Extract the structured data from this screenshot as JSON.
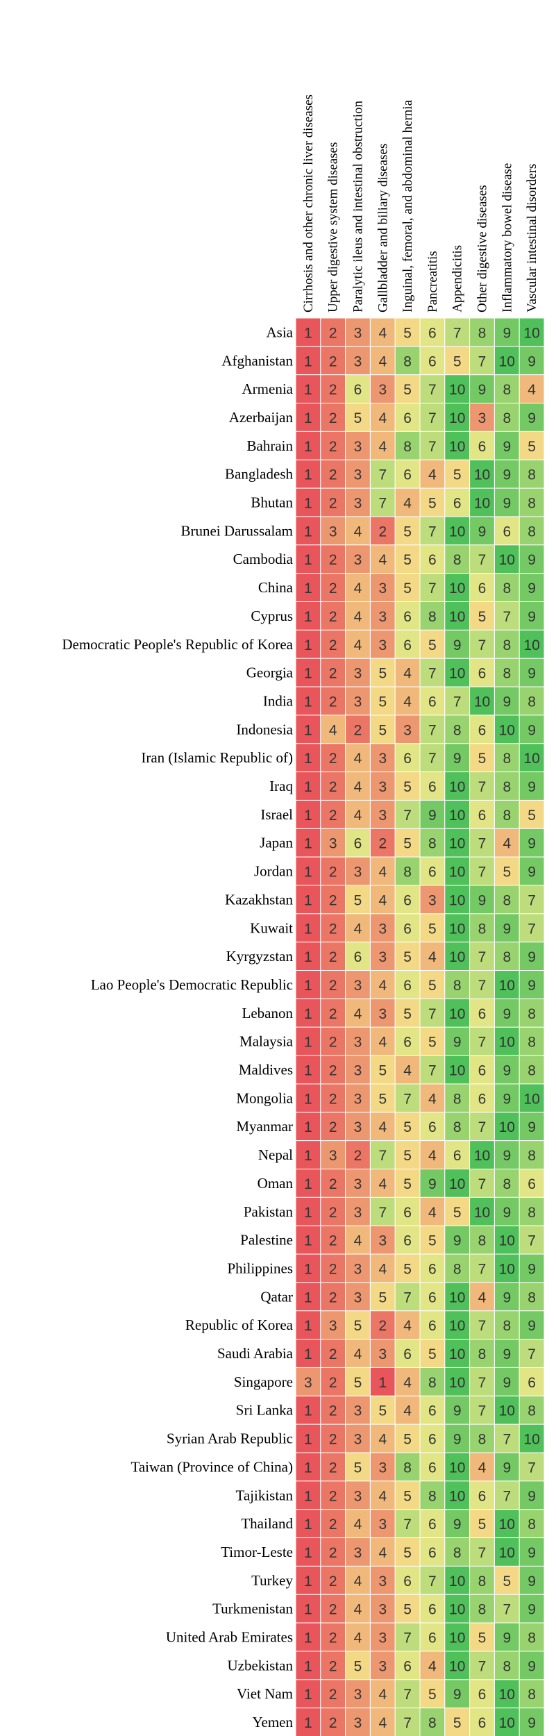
{
  "chart_data": {
    "type": "heatmap",
    "columns": [
      "Cirrhosis and other chronic liver diseases",
      "Upper digestive system diseases",
      "Paralytic ileus and intestinal obstruction",
      "Gallbladder and biliary diseases",
      "Inguinal, femoral, and abdominal hernia",
      "Pancreatitis",
      "Appendicitis",
      "Other digestive diseases",
      "Inflammatory bowel disease",
      "Vascular intestinal disorders"
    ],
    "rows": [
      "Asia",
      "Afghanistan",
      "Armenia",
      "Azerbaijan",
      "Bahrain",
      "Bangladesh",
      "Bhutan",
      "Brunei Darussalam",
      "Cambodia",
      "China",
      "Cyprus",
      "Democratic People's Republic of Korea",
      "Georgia",
      "India",
      "Indonesia",
      "Iran (Islamic Republic of)",
      "Iraq",
      "Israel",
      "Japan",
      "Jordan",
      "Kazakhstan",
      "Kuwait",
      "Kyrgyzstan",
      "Lao People's Democratic Republic",
      "Lebanon",
      "Malaysia",
      "Maldives",
      "Mongolia",
      "Myanmar",
      "Nepal",
      "Oman",
      "Pakistan",
      "Palestine",
      "Philippines",
      "Qatar",
      "Republic of Korea",
      "Saudi Arabia",
      "Singapore",
      "Sri Lanka",
      "Syrian Arab Republic",
      "Taiwan (Province of China)",
      "Tajikistan",
      "Thailand",
      "Timor-Leste",
      "Turkey",
      "Turkmenistan",
      "United Arab Emirates",
      "Uzbekistan",
      "Viet Nam",
      "Yemen"
    ],
    "values": [
      [
        1,
        2,
        3,
        4,
        5,
        6,
        7,
        8,
        9,
        10
      ],
      [
        1,
        2,
        3,
        4,
        8,
        6,
        5,
        7,
        10,
        9
      ],
      [
        1,
        2,
        6,
        3,
        5,
        7,
        10,
        9,
        8,
        4
      ],
      [
        1,
        2,
        5,
        4,
        6,
        7,
        10,
        3,
        8,
        9
      ],
      [
        1,
        2,
        3,
        4,
        8,
        7,
        10,
        6,
        9,
        5
      ],
      [
        1,
        2,
        3,
        7,
        6,
        4,
        5,
        10,
        9,
        8
      ],
      [
        1,
        2,
        3,
        7,
        4,
        5,
        6,
        10,
        9,
        8
      ],
      [
        1,
        3,
        4,
        2,
        5,
        7,
        10,
        9,
        6,
        8
      ],
      [
        1,
        2,
        3,
        4,
        5,
        6,
        8,
        7,
        10,
        9
      ],
      [
        1,
        2,
        4,
        3,
        5,
        7,
        10,
        6,
        8,
        9
      ],
      [
        1,
        2,
        4,
        3,
        6,
        8,
        10,
        5,
        7,
        9
      ],
      [
        1,
        2,
        4,
        3,
        6,
        5,
        9,
        7,
        8,
        10
      ],
      [
        1,
        2,
        3,
        5,
        4,
        7,
        10,
        6,
        8,
        9
      ],
      [
        1,
        2,
        3,
        5,
        4,
        6,
        7,
        10,
        9,
        8
      ],
      [
        1,
        4,
        2,
        5,
        3,
        7,
        8,
        6,
        10,
        9
      ],
      [
        1,
        2,
        4,
        3,
        6,
        7,
        9,
        5,
        8,
        10
      ],
      [
        1,
        2,
        4,
        3,
        5,
        6,
        10,
        7,
        8,
        9
      ],
      [
        1,
        2,
        4,
        3,
        7,
        9,
        10,
        6,
        8,
        5
      ],
      [
        1,
        3,
        6,
        2,
        5,
        8,
        10,
        7,
        4,
        9
      ],
      [
        1,
        2,
        3,
        4,
        8,
        6,
        10,
        7,
        5,
        9
      ],
      [
        1,
        2,
        5,
        4,
        6,
        3,
        10,
        9,
        8,
        7
      ],
      [
        1,
        2,
        4,
        3,
        6,
        5,
        10,
        8,
        9,
        7
      ],
      [
        1,
        2,
        6,
        3,
        5,
        4,
        10,
        7,
        8,
        9
      ],
      [
        1,
        2,
        3,
        4,
        6,
        5,
        8,
        7,
        10,
        9
      ],
      [
        1,
        2,
        4,
        3,
        5,
        7,
        10,
        6,
        9,
        8
      ],
      [
        1,
        2,
        3,
        4,
        6,
        5,
        9,
        7,
        10,
        8
      ],
      [
        1,
        2,
        3,
        5,
        4,
        7,
        10,
        6,
        9,
        8
      ],
      [
        1,
        2,
        3,
        5,
        7,
        4,
        8,
        6,
        9,
        10
      ],
      [
        1,
        2,
        3,
        4,
        5,
        6,
        8,
        7,
        10,
        9
      ],
      [
        1,
        3,
        2,
        7,
        5,
        4,
        6,
        10,
        9,
        8
      ],
      [
        1,
        2,
        3,
        4,
        5,
        9,
        10,
        7,
        8,
        6
      ],
      [
        1,
        2,
        3,
        7,
        6,
        4,
        5,
        10,
        9,
        8
      ],
      [
        1,
        2,
        4,
        3,
        6,
        5,
        9,
        8,
        10,
        7
      ],
      [
        1,
        2,
        3,
        4,
        5,
        6,
        8,
        7,
        10,
        9
      ],
      [
        1,
        2,
        3,
        5,
        7,
        6,
        10,
        4,
        9,
        8
      ],
      [
        1,
        3,
        5,
        2,
        4,
        6,
        10,
        7,
        8,
        9
      ],
      [
        1,
        2,
        4,
        3,
        6,
        5,
        10,
        8,
        9,
        7
      ],
      [
        3,
        2,
        5,
        1,
        4,
        8,
        10,
        7,
        9,
        6
      ],
      [
        1,
        2,
        3,
        5,
        4,
        6,
        9,
        7,
        10,
        8
      ],
      [
        1,
        2,
        3,
        4,
        5,
        6,
        9,
        8,
        7,
        10
      ],
      [
        1,
        2,
        5,
        3,
        8,
        6,
        10,
        4,
        9,
        7
      ],
      [
        1,
        2,
        3,
        4,
        5,
        8,
        10,
        6,
        7,
        9
      ],
      [
        1,
        2,
        4,
        3,
        7,
        6,
        9,
        5,
        10,
        8
      ],
      [
        1,
        2,
        3,
        4,
        5,
        6,
        8,
        7,
        10,
        9
      ],
      [
        1,
        2,
        4,
        3,
        6,
        7,
        10,
        8,
        5,
        9
      ],
      [
        1,
        2,
        4,
        3,
        5,
        6,
        10,
        8,
        7,
        9
      ],
      [
        1,
        2,
        4,
        3,
        7,
        6,
        10,
        5,
        9,
        8
      ],
      [
        1,
        2,
        5,
        3,
        6,
        4,
        10,
        7,
        8,
        9
      ],
      [
        1,
        2,
        3,
        4,
        7,
        5,
        9,
        6,
        10,
        8
      ],
      [
        1,
        2,
        3,
        4,
        7,
        8,
        5,
        6,
        10,
        9
      ]
    ],
    "color_scale": {
      "low": "#e8555a",
      "mid": "#f4ea8c",
      "high": "#4fc05a"
    }
  }
}
